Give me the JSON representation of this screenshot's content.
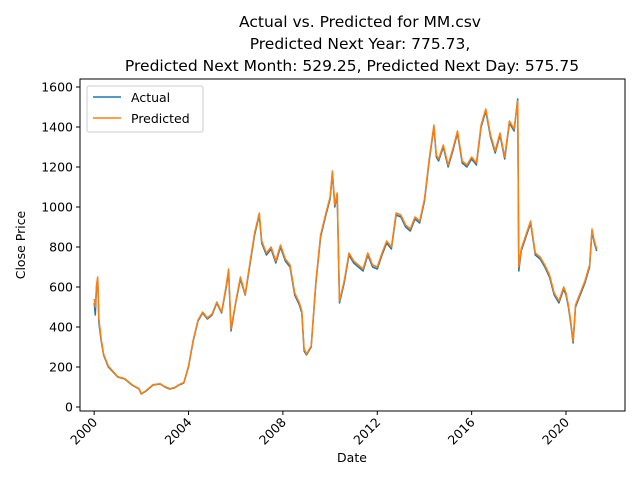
{
  "colors": {
    "actual": "#1f77b4",
    "predicted": "#ff7f0e"
  },
  "chart_data": {
    "type": "line",
    "title_lines": [
      "Actual vs. Predicted for MM.csv",
      "Predicted Next Year: 775.73,",
      "Predicted Next Month: 529.25, Predicted Next Day: 575.75"
    ],
    "xlabel": "Date",
    "ylabel": "Close Price",
    "xlim": [
      1999.4,
      2022.5
    ],
    "ylim": [
      -20,
      1640
    ],
    "x_ticks": [
      2000,
      2004,
      2008,
      2012,
      2016,
      2020
    ],
    "x_tick_labels": [
      "2000",
      "2004",
      "2008",
      "2012",
      "2016",
      "2020"
    ],
    "y_ticks": [
      0,
      200,
      400,
      600,
      800,
      1000,
      1200,
      1400,
      1600
    ],
    "y_tick_labels": [
      "0",
      "200",
      "400",
      "600",
      "800",
      "1000",
      "1200",
      "1400",
      "1600"
    ],
    "legend_position": "upper-left",
    "grid": false,
    "series": [
      {
        "name": "Actual",
        "color": "#1f77b4",
        "x": [
          2000.0,
          2000.05,
          2000.1,
          2000.15,
          2000.2,
          2000.3,
          2000.4,
          2000.6,
          2000.8,
          2001.0,
          2001.3,
          2001.6,
          2001.9,
          2002.0,
          2002.2,
          2002.5,
          2002.8,
          2003.0,
          2003.2,
          2003.4,
          2003.6,
          2003.8,
          2004.0,
          2004.2,
          2004.4,
          2004.6,
          2004.8,
          2005.0,
          2005.2,
          2005.4,
          2005.6,
          2005.7,
          2005.8,
          2006.0,
          2006.2,
          2006.4,
          2006.6,
          2006.8,
          2007.0,
          2007.1,
          2007.3,
          2007.5,
          2007.7,
          2007.9,
          2008.1,
          2008.3,
          2008.5,
          2008.7,
          2008.8,
          2008.9,
          2009.0,
          2009.2,
          2009.4,
          2009.6,
          2009.8,
          2010.0,
          2010.1,
          2010.2,
          2010.3,
          2010.4,
          2010.6,
          2010.8,
          2011.0,
          2011.2,
          2011.4,
          2011.6,
          2011.8,
          2012.0,
          2012.2,
          2012.4,
          2012.6,
          2012.8,
          2013.0,
          2013.2,
          2013.4,
          2013.6,
          2013.8,
          2014.0,
          2014.2,
          2014.4,
          2014.5,
          2014.6,
          2014.8,
          2015.0,
          2015.2,
          2015.4,
          2015.6,
          2015.8,
          2016.0,
          2016.2,
          2016.4,
          2016.6,
          2016.8,
          2017.0,
          2017.2,
          2017.4,
          2017.6,
          2017.8,
          2017.95,
          2018.0,
          2018.1,
          2018.3,
          2018.5,
          2018.7,
          2018.9,
          2019.1,
          2019.3,
          2019.5,
          2019.7,
          2019.9,
          2020.0,
          2020.1,
          2020.2,
          2020.3,
          2020.4,
          2020.6,
          2020.8,
          2021.0,
          2021.1,
          2021.2,
          2021.3
        ],
        "y": [
          520,
          460,
          600,
          640,
          420,
          330,
          260,
          200,
          175,
          150,
          140,
          110,
          90,
          65,
          80,
          110,
          115,
          100,
          90,
          95,
          110,
          120,
          200,
          330,
          430,
          470,
          440,
          460,
          520,
          470,
          600,
          680,
          380,
          520,
          640,
          560,
          710,
          860,
          960,
          820,
          760,
          790,
          720,
          800,
          730,
          700,
          560,
          510,
          470,
          280,
          260,
          300,
          620,
          850,
          950,
          1040,
          1170,
          1000,
          1060,
          520,
          620,
          760,
          720,
          700,
          680,
          760,
          700,
          690,
          760,
          820,
          790,
          960,
          950,
          900,
          880,
          940,
          920,
          1030,
          1230,
          1400,
          1250,
          1230,
          1300,
          1200,
          1280,
          1370,
          1220,
          1200,
          1240,
          1210,
          1400,
          1480,
          1350,
          1270,
          1360,
          1240,
          1420,
          1380,
          1540,
          680,
          780,
          850,
          920,
          760,
          740,
          700,
          650,
          560,
          520,
          590,
          560,
          500,
          420,
          320,
          500,
          560,
          620,
          700,
          880,
          820,
          780
        ]
      },
      {
        "name": "Predicted",
        "color": "#ff7f0e",
        "x": [
          2000.0,
          2000.05,
          2000.1,
          2000.15,
          2000.2,
          2000.3,
          2000.4,
          2000.6,
          2000.8,
          2001.0,
          2001.3,
          2001.6,
          2001.9,
          2002.0,
          2002.2,
          2002.5,
          2002.8,
          2003.0,
          2003.2,
          2003.4,
          2003.6,
          2003.8,
          2004.0,
          2004.2,
          2004.4,
          2004.6,
          2004.8,
          2005.0,
          2005.2,
          2005.4,
          2005.6,
          2005.7,
          2005.8,
          2006.0,
          2006.2,
          2006.4,
          2006.6,
          2006.8,
          2007.0,
          2007.1,
          2007.3,
          2007.5,
          2007.7,
          2007.9,
          2008.1,
          2008.3,
          2008.5,
          2008.7,
          2008.8,
          2008.9,
          2009.0,
          2009.2,
          2009.4,
          2009.6,
          2009.8,
          2010.0,
          2010.1,
          2010.2,
          2010.3,
          2010.4,
          2010.6,
          2010.8,
          2011.0,
          2011.2,
          2011.4,
          2011.6,
          2011.8,
          2012.0,
          2012.2,
          2012.4,
          2012.6,
          2012.8,
          2013.0,
          2013.2,
          2013.4,
          2013.6,
          2013.8,
          2014.0,
          2014.2,
          2014.4,
          2014.5,
          2014.6,
          2014.8,
          2015.0,
          2015.2,
          2015.4,
          2015.6,
          2015.8,
          2016.0,
          2016.2,
          2016.4,
          2016.6,
          2016.8,
          2017.0,
          2017.2,
          2017.4,
          2017.6,
          2017.8,
          2017.95,
          2018.0,
          2018.1,
          2018.3,
          2018.5,
          2018.7,
          2018.9,
          2019.1,
          2019.3,
          2019.5,
          2019.7,
          2019.9,
          2020.0,
          2020.1,
          2020.2,
          2020.3,
          2020.4,
          2020.6,
          2020.8,
          2021.0,
          2021.1,
          2021.2,
          2021.3
        ],
        "y": [
          540,
          500,
          610,
          650,
          440,
          340,
          265,
          205,
          178,
          152,
          142,
          112,
          92,
          67,
          82,
          112,
          116,
          102,
          92,
          97,
          112,
          122,
          205,
          335,
          435,
          475,
          445,
          465,
          525,
          475,
          610,
          690,
          390,
          525,
          650,
          565,
          720,
          870,
          970,
          830,
          770,
          800,
          730,
          810,
          740,
          710,
          570,
          520,
          480,
          290,
          265,
          305,
          630,
          860,
          960,
          1050,
          1180,
          1010,
          1070,
          530,
          630,
          770,
          730,
          710,
          690,
          770,
          710,
          700,
          770,
          830,
          800,
          970,
          960,
          910,
          890,
          950,
          930,
          1040,
          1240,
          1410,
          1260,
          1240,
          1310,
          1210,
          1290,
          1380,
          1230,
          1210,
          1250,
          1220,
          1410,
          1490,
          1360,
          1280,
          1370,
          1250,
          1430,
          1390,
          1530,
          700,
          790,
          860,
          930,
          770,
          750,
          710,
          660,
          570,
          530,
          600,
          570,
          510,
          430,
          330,
          510,
          570,
          630,
          710,
          890,
          830,
          790
        ]
      }
    ]
  }
}
